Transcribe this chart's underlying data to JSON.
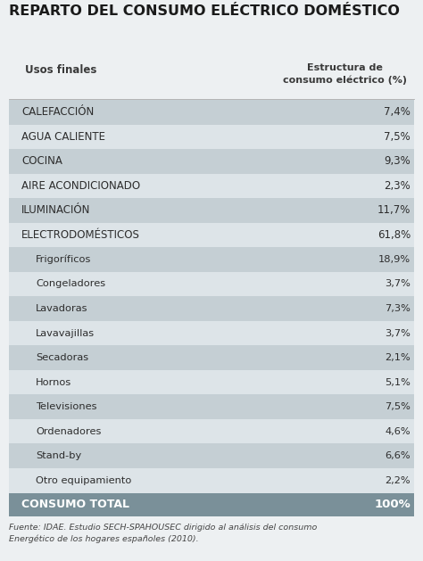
{
  "title": "REPARTO DEL CONSUMO ELÉCTRICO DOMÉSTICO",
  "col1_header": "Usos finales",
  "col2_header": "Estructura de\nconsumo eléctrico (%)",
  "rows": [
    {
      "label": "CALEFACCIÓN",
      "value": "7,4%",
      "indent": false,
      "bg": "light"
    },
    {
      "label": "AGUA CALIENTE",
      "value": "7,5%",
      "indent": false,
      "bg": "white"
    },
    {
      "label": "COCINA",
      "value": "9,3%",
      "indent": false,
      "bg": "light"
    },
    {
      "label": "AIRE ACONDICIONADO",
      "value": "2,3%",
      "indent": false,
      "bg": "white"
    },
    {
      "label": "ILUMINACIÓN",
      "value": "11,7%",
      "indent": false,
      "bg": "light"
    },
    {
      "label": "ELECTRODOMÉSTICOS",
      "value": "61,8%",
      "indent": false,
      "bg": "white"
    },
    {
      "label": "Frigoríficos",
      "value": "18,9%",
      "indent": true,
      "bg": "light"
    },
    {
      "label": "Congeladores",
      "value": "3,7%",
      "indent": true,
      "bg": "white"
    },
    {
      "label": "Lavadoras",
      "value": "7,3%",
      "indent": true,
      "bg": "light"
    },
    {
      "label": "Lavavajillas",
      "value": "3,7%",
      "indent": true,
      "bg": "white"
    },
    {
      "label": "Secadoras",
      "value": "2,1%",
      "indent": true,
      "bg": "light"
    },
    {
      "label": "Hornos",
      "value": "5,1%",
      "indent": true,
      "bg": "white"
    },
    {
      "label": "Televisiones",
      "value": "7,5%",
      "indent": true,
      "bg": "light"
    },
    {
      "label": "Ordenadores",
      "value": "4,6%",
      "indent": true,
      "bg": "white"
    },
    {
      "label": "Stand-by",
      "value": "6,6%",
      "indent": true,
      "bg": "light"
    },
    {
      "label": "Otro equipamiento",
      "value": "2,2%",
      "indent": true,
      "bg": "white"
    }
  ],
  "footer_row": {
    "label": "CONSUMO TOTAL",
    "value": "100%"
  },
  "footnote": "Fuente: IDAE. Estudio SECH-SPAHOUSEC dirigido al análisis del consumo\nEnergético de los hogares españoles (2010).",
  "bg_light": "#c5cfd4",
  "bg_white": "#dde4e8",
  "bg_figure": "#edf0f2",
  "text_dark": "#2d2d2d",
  "text_header": "#3a3a3a",
  "title_color": "#1a1a1a",
  "footer_bg": "#7a9099",
  "footer_text": "#ffffff",
  "col_split": 0.68
}
